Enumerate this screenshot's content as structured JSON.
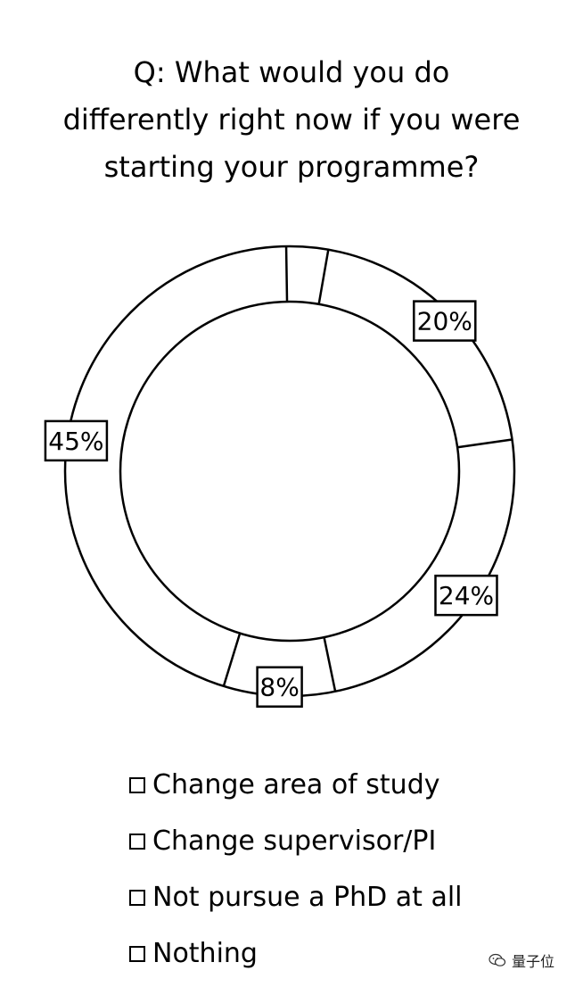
{
  "chart_data": {
    "type": "pie",
    "variant": "donut",
    "title_lines": [
      "Q: What would you do",
      "differently right now if you were",
      "starting your programme?"
    ],
    "categories": [
      "Change area of study",
      "Change supervisor/PI",
      "Not pursue a PhD at all",
      "Nothing"
    ],
    "values": [
      20,
      24,
      8,
      45
    ],
    "value_labels": [
      "20%",
      "24%",
      "8%",
      "45%"
    ],
    "legend_position": "bottom",
    "colors": {
      "fill": "#ffffff",
      "stroke": "#000000"
    }
  },
  "watermark": {
    "icon": "wechat-icon",
    "text": "量子位"
  }
}
